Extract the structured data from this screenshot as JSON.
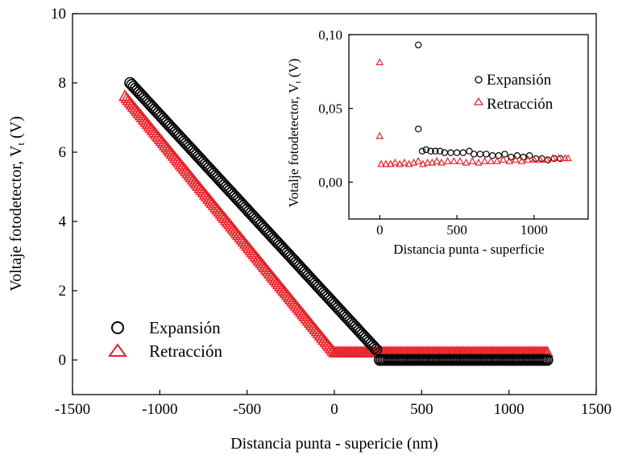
{
  "colors": {
    "expansion": "#000000",
    "retraction": "#e8232a",
    "axis": "#000000"
  },
  "chart_data": [
    {
      "id": "main",
      "type": "scatter",
      "title": "",
      "xlabel": "Distancia punta - supericie (nm)",
      "ylabel_main": "Voltaje fotodetector, V",
      "ylabel_sub": "t",
      "ylabel_unit": " (V)",
      "xlim": [
        -1500,
        1500
      ],
      "ylim": [
        -1,
        10
      ],
      "x_ticks": [
        -1500,
        -1000,
        -500,
        0,
        500,
        1000,
        1500
      ],
      "x_tick_labels": [
        "-1500",
        "-1000",
        "-500",
        "0",
        "500",
        "1000",
        "1500"
      ],
      "y_ticks": [
        0,
        2,
        4,
        6,
        8,
        10
      ],
      "y_tick_labels": [
        "0",
        "2",
        "4",
        "6",
        "8",
        "10"
      ],
      "grid": false,
      "legend_position": "bottom-left",
      "series": [
        {
          "name": "Expansión",
          "marker": "circle",
          "segments": [
            {
              "x_start": -1170,
              "x_end": 240,
              "y_start": 8.0,
              "y_end": 0.3
            },
            {
              "x_start": 260,
              "x_end": 1220,
              "y_start": 0.0,
              "y_end": 0.0
            }
          ]
        },
        {
          "name": "Retracción",
          "marker": "triangle",
          "segments": [
            {
              "x_start": -1200,
              "x_end": -10,
              "y_start": 7.6,
              "y_end": 0.25
            },
            {
              "x_start": 0,
              "x_end": 1220,
              "y_start": 0.2,
              "y_end": 0.2
            }
          ]
        }
      ]
    },
    {
      "id": "inset",
      "type": "scatter",
      "title": "",
      "xlabel": "Distancia punta - superficie",
      "ylabel_main": "Votalje fotodetector, V",
      "ylabel_sub": "t",
      "ylabel_unit": " (V)",
      "xlim": [
        -200,
        1350
      ],
      "ylim": [
        -0.025,
        0.1
      ],
      "x_ticks": [
        0,
        500,
        1000
      ],
      "x_tick_labels": [
        "0",
        "500",
        "1000"
      ],
      "y_ticks": [
        0,
        0.05,
        0.1
      ],
      "y_tick_labels": [
        "0,00",
        "0,05",
        "0,10"
      ],
      "grid": false,
      "legend_position": "top-right",
      "series": [
        {
          "name": "Expansión",
          "marker": "circle",
          "points": [
            [
              250,
              0.093
            ],
            [
              250,
              0.036
            ],
            [
              275,
              0.021
            ],
            [
              300,
              0.022
            ],
            [
              330,
              0.021
            ],
            [
              360,
              0.021
            ],
            [
              390,
              0.021
            ],
            [
              420,
              0.02
            ],
            [
              460,
              0.02
            ],
            [
              500,
              0.02
            ],
            [
              540,
              0.02
            ],
            [
              580,
              0.021
            ],
            [
              610,
              0.019
            ],
            [
              650,
              0.019
            ],
            [
              690,
              0.019
            ],
            [
              730,
              0.018
            ],
            [
              770,
              0.018
            ],
            [
              810,
              0.019
            ],
            [
              850,
              0.017
            ],
            [
              890,
              0.018
            ],
            [
              930,
              0.017
            ],
            [
              970,
              0.018
            ],
            [
              1010,
              0.016
            ],
            [
              1050,
              0.016
            ],
            [
              1090,
              0.015
            ],
            [
              1130,
              0.016
            ],
            [
              1170,
              0.016
            ]
          ]
        },
        {
          "name": "Retracción",
          "marker": "triangle",
          "points": [
            [
              0,
              0.081
            ],
            [
              0,
              0.031
            ],
            [
              10,
              0.012
            ],
            [
              40,
              0.012
            ],
            [
              70,
              0.012
            ],
            [
              100,
              0.013
            ],
            [
              130,
              0.012
            ],
            [
              160,
              0.013
            ],
            [
              190,
              0.012
            ],
            [
              220,
              0.013
            ],
            [
              250,
              0.014
            ],
            [
              280,
              0.012
            ],
            [
              310,
              0.013
            ],
            [
              340,
              0.013
            ],
            [
              370,
              0.014
            ],
            [
              400,
              0.013
            ],
            [
              440,
              0.014
            ],
            [
              480,
              0.014
            ],
            [
              520,
              0.014
            ],
            [
              560,
              0.013
            ],
            [
              600,
              0.014
            ],
            [
              640,
              0.013
            ],
            [
              680,
              0.014
            ],
            [
              720,
              0.014
            ],
            [
              760,
              0.014
            ],
            [
              800,
              0.015
            ],
            [
              840,
              0.014
            ],
            [
              880,
              0.015
            ],
            [
              920,
              0.014
            ],
            [
              960,
              0.015
            ],
            [
              1000,
              0.015
            ],
            [
              1040,
              0.015
            ],
            [
              1080,
              0.015
            ],
            [
              1120,
              0.016
            ],
            [
              1160,
              0.016
            ],
            [
              1200,
              0.016
            ],
            [
              1220,
              0.016
            ]
          ]
        }
      ]
    }
  ]
}
